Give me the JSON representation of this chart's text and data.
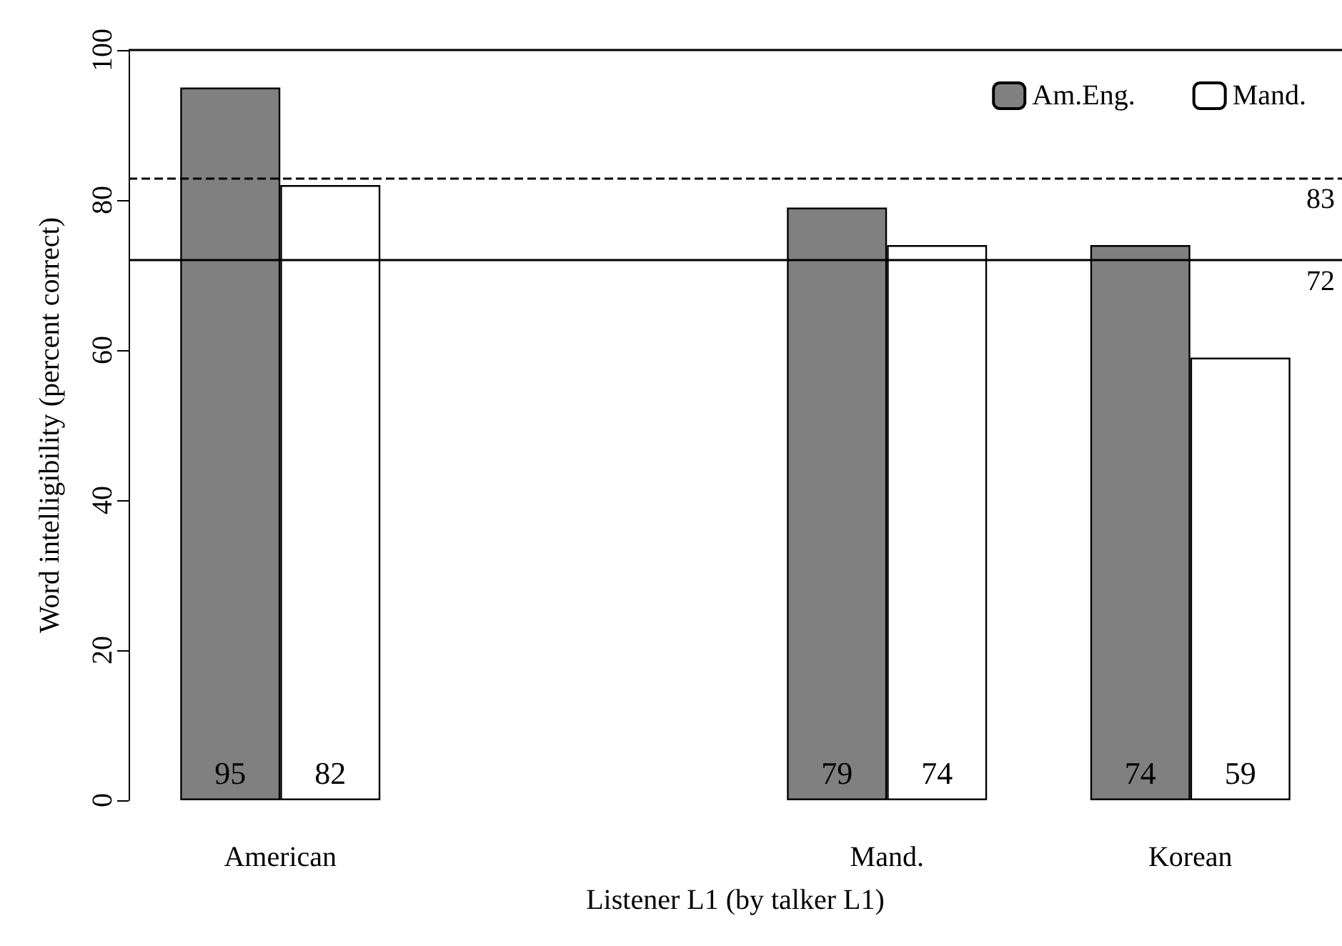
{
  "chart_data": {
    "type": "bar",
    "xlabel": "Listener L1 (by talker L1)",
    "ylabel": "Word intelligibility (percent correct)",
    "categories": [
      "American",
      null,
      "Mand.",
      "Korean"
    ],
    "series": [
      {
        "name": "Am.Eng.",
        "color": "#808080",
        "values": [
          95,
          null,
          79,
          74
        ]
      },
      {
        "name": "Mand.",
        "color": "#ffffff",
        "values": [
          82,
          null,
          74,
          59
        ]
      }
    ],
    "ylim": [
      0,
      100
    ],
    "yticks": [
      0,
      20,
      40,
      60,
      80,
      100
    ],
    "grid": false,
    "legend": "top right",
    "data_labels": true,
    "ref_lines": [
      {
        "axis": "y",
        "value": 83,
        "label": "83",
        "line_style": "dashed"
      },
      {
        "axis": "y",
        "value": 72,
        "label": "72",
        "line_style": "solid"
      }
    ]
  }
}
